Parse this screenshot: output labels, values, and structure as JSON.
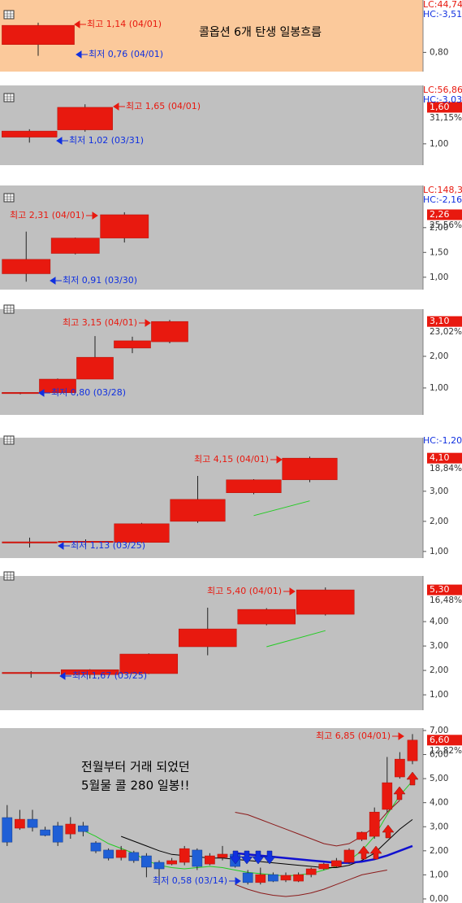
{
  "chart_data": [
    {
      "type": "candlestick",
      "title": "콜옵션 6개 탄생 일봉흐름",
      "background": "#fbc99b",
      "up_color": "#e8190f",
      "down_color": "#1f5fd6",
      "candles": [
        {
          "open": 0.89,
          "high": 1.14,
          "low": 0.76,
          "close": 1.11
        }
      ],
      "ylim": [
        0.58,
        1.4
      ],
      "yticks": [
        {
          "value": 0.8,
          "label": "0,80"
        }
      ],
      "lc_label": "LC:44,74",
      "hc_label": "HC:-3,51",
      "annotations": [
        "최고 1,14 (04/01)",
        "최저 0,76 (04/01)"
      ],
      "lines": []
    },
    {
      "type": "candlestick",
      "background": "#c0c0c0",
      "up_color": "#e8190f",
      "down_color": "#1f5fd6",
      "candles": [
        {
          "open": 1.11,
          "high": 1.24,
          "low": 1.02,
          "close": 1.21
        },
        {
          "open": 1.23,
          "high": 1.65,
          "low": 1.2,
          "close": 1.6
        }
      ],
      "ylim": [
        0.65,
        1.96
      ],
      "yticks": [
        {
          "value": 1,
          "label": "1,00"
        }
      ],
      "last_label": "1,60",
      "change_label": "31,15%",
      "lc_label": "LC:56,86",
      "hc_label": "HC:-3,03",
      "annotations": [
        "최고 1,65 (04/01)",
        "최저 1,02 (03/31)"
      ],
      "lines": []
    },
    {
      "type": "candlestick",
      "background": "#c0c0c0",
      "up_color": "#e8190f",
      "down_color": "#1f5fd6",
      "candles": [
        {
          "open": 1.07,
          "high": 1.92,
          "low": 0.91,
          "close": 1.36
        },
        {
          "open": 1.48,
          "high": 1.8,
          "low": 1.46,
          "close": 1.79
        },
        {
          "open": 1.79,
          "high": 2.31,
          "low": 1.7,
          "close": 2.26
        }
      ],
      "ylim": [
        0.75,
        2.85
      ],
      "yticks": [
        {
          "value": 2,
          "label": "2,00"
        },
        {
          "value": 1.5,
          "label": "1,50"
        },
        {
          "value": 1,
          "label": "1,00"
        }
      ],
      "last_label": "2,26",
      "change_label": "25,56%",
      "lc_label": "LC:148,3",
      "hc_label": "HC:-2,16",
      "annotations": [
        "최고 2,31 (04/01)",
        "최저 0,91 (03/30)"
      ],
      "lines": []
    },
    {
      "type": "candlestick",
      "background": "#c0c0c0",
      "up_color": "#e8190f",
      "down_color": "#1f5fd6",
      "candles": [
        {
          "open": 0.83,
          "high": 0.87,
          "low": 0.8,
          "close": 0.86
        },
        {
          "open": 0.85,
          "high": 1.3,
          "low": 0.82,
          "close": 1.28
        },
        {
          "open": 1.28,
          "high": 2.64,
          "low": 1.28,
          "close": 1.97
        },
        {
          "open": 2.26,
          "high": 2.62,
          "low": 2.1,
          "close": 2.49
        },
        {
          "open": 2.46,
          "high": 3.15,
          "low": 2.41,
          "close": 3.1
        }
      ],
      "ylim": [
        0.15,
        3.49
      ],
      "yticks": [
        {
          "value": 2,
          "label": "2,00"
        },
        {
          "value": 1,
          "label": "1,00"
        }
      ],
      "last_label": "3,10",
      "change_label": "23,02%",
      "annotations": [
        "최고 3,15 (04/01)",
        "최저 0,80 (03/28)"
      ],
      "lines": []
    },
    {
      "type": "candlestick",
      "background": "#c0c0c0",
      "up_color": "#e8190f",
      "down_color": "#1f5fd6",
      "candles": [
        {
          "open": 1.28,
          "high": 1.46,
          "low": 1.13,
          "close": 1.32
        },
        {
          "open": 1.32,
          "high": 1.4,
          "low": 1.15,
          "close": 1.34
        },
        {
          "open": 1.3,
          "high": 1.95,
          "low": 1.28,
          "close": 1.92
        },
        {
          "open": 2.0,
          "high": 3.51,
          "low": 1.95,
          "close": 2.73
        },
        {
          "open": 2.95,
          "high": 3.4,
          "low": 2.9,
          "close": 3.38
        },
        {
          "open": 3.38,
          "high": 4.15,
          "low": 3.3,
          "close": 4.1
        }
      ],
      "ylim": [
        0.78,
        4.78
      ],
      "yticks": [
        {
          "value": 3,
          "label": "3,00"
        },
        {
          "value": 2,
          "label": "2,00"
        },
        {
          "value": 1,
          "label": "1,00"
        }
      ],
      "last_label": "4,10",
      "change_label": "18,84%",
      "hc_label": "HC:-1,20",
      "annotations": [
        "최고 4,15 (04/01)",
        "최저 1,13 (03/25)"
      ],
      "lines": [
        {
          "color": "#22cc22",
          "values": [
            null,
            null,
            null,
            null,
            2.19,
            2.68
          ]
        }
      ]
    },
    {
      "type": "candlestick",
      "background": "#c0c0c0",
      "up_color": "#e8190f",
      "down_color": "#1f5fd6",
      "candles": [
        {
          "open": 1.88,
          "high": 1.97,
          "low": 1.7,
          "close": 1.92
        },
        {
          "open": 1.83,
          "high": 2.05,
          "low": 1.67,
          "close": 2.03
        },
        {
          "open": 1.87,
          "high": 2.7,
          "low": 1.85,
          "close": 2.67
        },
        {
          "open": 2.97,
          "high": 4.57,
          "low": 2.62,
          "close": 3.7
        },
        {
          "open": 3.9,
          "high": 4.55,
          "low": 3.85,
          "close": 4.5
        },
        {
          "open": 4.3,
          "high": 5.4,
          "low": 4.25,
          "close": 5.3
        }
      ],
      "ylim": [
        0.37,
        5.87
      ],
      "yticks": [
        {
          "value": 4,
          "label": "4,00"
        },
        {
          "value": 3,
          "label": "3,00"
        },
        {
          "value": 2,
          "label": "2,00"
        },
        {
          "value": 1,
          "label": "1,00"
        }
      ],
      "last_label": "5,30",
      "change_label": "16,48%",
      "annotations": [
        "최고 5,40 (04/01)",
        "최저 1,67 (03/25)"
      ],
      "lines": [
        {
          "color": "#22cc22",
          "values": [
            null,
            null,
            null,
            null,
            2.97,
            3.63
          ]
        }
      ]
    },
    {
      "type": "candlestick",
      "background": "#c0c0c0",
      "up_color": "#e8190f",
      "down_color": "#1f5fd6",
      "texts": [
        "전월부터 거래 되었던",
        "5월물 콜 280 일봉!!"
      ],
      "candles": [
        {
          "open": 3.38,
          "high": 3.9,
          "low": 2.2,
          "close": 2.36
        },
        {
          "open": 2.94,
          "high": 3.7,
          "low": 2.87,
          "close": 3.31
        },
        {
          "open": 3.31,
          "high": 3.7,
          "low": 2.8,
          "close": 2.97
        },
        {
          "open": 2.87,
          "high": 3.0,
          "low": 2.6,
          "close": 2.64
        },
        {
          "open": 3.04,
          "high": 3.2,
          "low": 2.2,
          "close": 2.36
        },
        {
          "open": 2.7,
          "high": 3.4,
          "low": 2.5,
          "close": 3.11
        },
        {
          "open": 3.04,
          "high": 3.2,
          "low": 2.6,
          "close": 2.8
        },
        {
          "open": 2.33,
          "high": 2.4,
          "low": 1.9,
          "close": 1.99
        },
        {
          "open": 2.03,
          "high": 2.1,
          "low": 1.6,
          "close": 1.69
        },
        {
          "open": 1.72,
          "high": 2.2,
          "low": 1.6,
          "close": 2.03
        },
        {
          "open": 1.93,
          "high": 2.0,
          "low": 1.5,
          "close": 1.59
        },
        {
          "open": 1.79,
          "high": 1.9,
          "low": 0.9,
          "close": 1.32
        },
        {
          "open": 1.52,
          "high": 1.6,
          "low": 0.58,
          "close": 1.25
        },
        {
          "open": 1.45,
          "high": 1.7,
          "low": 1.4,
          "close": 1.59
        },
        {
          "open": 1.52,
          "high": 2.2,
          "low": 1.4,
          "close": 2.09
        },
        {
          "open": 2.03,
          "high": 2.1,
          "low": 1.2,
          "close": 1.35
        },
        {
          "open": 1.45,
          "high": 1.9,
          "low": 1.4,
          "close": 1.79
        },
        {
          "open": 1.72,
          "high": 2.2,
          "low": 1.6,
          "close": 1.86
        },
        {
          "open": 1.86,
          "high": 1.9,
          "low": 1.3,
          "close": 1.35
        },
        {
          "open": 1.08,
          "high": 1.2,
          "low": 0.6,
          "close": 0.68
        },
        {
          "open": 0.68,
          "high": 1.3,
          "low": 0.6,
          "close": 1.01
        },
        {
          "open": 1.01,
          "high": 1.1,
          "low": 0.7,
          "close": 0.74
        },
        {
          "open": 0.78,
          "high": 1.1,
          "low": 0.7,
          "close": 0.98
        },
        {
          "open": 0.74,
          "high": 1.1,
          "low": 0.7,
          "close": 1.01
        },
        {
          "open": 1.01,
          "high": 1.3,
          "low": 0.9,
          "close": 1.25
        },
        {
          "open": 1.25,
          "high": 1.5,
          "low": 1.2,
          "close": 1.45
        },
        {
          "open": 1.35,
          "high": 1.7,
          "low": 1.3,
          "close": 1.59
        },
        {
          "open": 1.52,
          "high": 2.1,
          "low": 1.45,
          "close": 2.03
        },
        {
          "open": 2.47,
          "high": 2.8,
          "low": 2.4,
          "close": 2.77
        },
        {
          "open": 2.6,
          "high": 3.8,
          "low": 2.5,
          "close": 3.61
        },
        {
          "open": 3.72,
          "high": 5.9,
          "low": 3.6,
          "close": 4.83
        },
        {
          "open": 5.07,
          "high": 6.1,
          "low": 5.0,
          "close": 5.81
        },
        {
          "open": 5.74,
          "high": 6.85,
          "low": 5.6,
          "close": 6.6
        }
      ],
      "ylim": [
        -0.17,
        7.1
      ],
      "yticks": [
        {
          "value": 7,
          "label": "7,00"
        },
        {
          "value": 6,
          "label": "6,00"
        },
        {
          "value": 5,
          "label": "5,00"
        },
        {
          "value": 4,
          "label": "4,00"
        },
        {
          "value": 3,
          "label": "3,00"
        },
        {
          "value": 2,
          "label": "2,00"
        },
        {
          "value": 1,
          "label": "1,00"
        },
        {
          "value": 0,
          "label": "0,00"
        }
      ],
      "last_label": "6,60",
      "change_label": "12,82%",
      "annotations": [
        "최고 6,85 (04/01)",
        "최저 0,58 (03/14)"
      ],
      "lines": [
        {
          "color": "#22cc22",
          "values": [
            null,
            null,
            null,
            null,
            null,
            null,
            2.85,
            2.6,
            2.3,
            2.1,
            1.9,
            1.6,
            1.4,
            1.3,
            1.25,
            1.3,
            1.35,
            1.3,
            1.2,
            1.1,
            1.05,
            1.0,
            0.95,
            1.0,
            1.05,
            1.2,
            1.35,
            1.6,
            2.0,
            2.6,
            3.5,
            4.3,
            4.9
          ]
        },
        {
          "color": "#000000",
          "values": [
            null,
            null,
            null,
            null,
            null,
            null,
            null,
            null,
            null,
            2.6,
            2.4,
            2.2,
            2.0,
            1.85,
            1.8,
            1.75,
            1.7,
            1.7,
            1.65,
            1.6,
            1.55,
            1.5,
            1.45,
            1.4,
            1.35,
            1.3,
            1.3,
            1.4,
            1.6,
            1.9,
            2.4,
            2.9,
            3.3
          ]
        },
        {
          "color": "#1010d0",
          "values": [
            null,
            null,
            null,
            null,
            null,
            null,
            null,
            null,
            null,
            null,
            null,
            null,
            null,
            null,
            null,
            null,
            null,
            null,
            1.9,
            1.85,
            1.8,
            1.75,
            1.7,
            1.65,
            1.6,
            1.55,
            1.5,
            1.5,
            1.55,
            1.65,
            1.8,
            2.0,
            2.2
          ]
        },
        {
          "color": "#8b1a1a",
          "values": [
            null,
            null,
            null,
            null,
            null,
            null,
            null,
            null,
            null,
            null,
            null,
            null,
            null,
            null,
            null,
            null,
            null,
            null,
            3.6,
            3.5,
            3.3,
            3.1,
            2.9,
            2.7,
            2.5,
            2.3,
            2.2,
            2.3,
            2.6,
            3.0,
            3.6,
            4.1,
            null
          ]
        },
        {
          "color": "#8b1a1a",
          "values": [
            null,
            null,
            null,
            null,
            null,
            null,
            null,
            null,
            null,
            null,
            null,
            null,
            null,
            null,
            null,
            null,
            null,
            null,
            0.6,
            0.4,
            0.25,
            0.15,
            0.1,
            0.15,
            0.25,
            0.4,
            0.6,
            0.8,
            1.0,
            1.1,
            1.2,
            null,
            null
          ]
        }
      ]
    }
  ]
}
